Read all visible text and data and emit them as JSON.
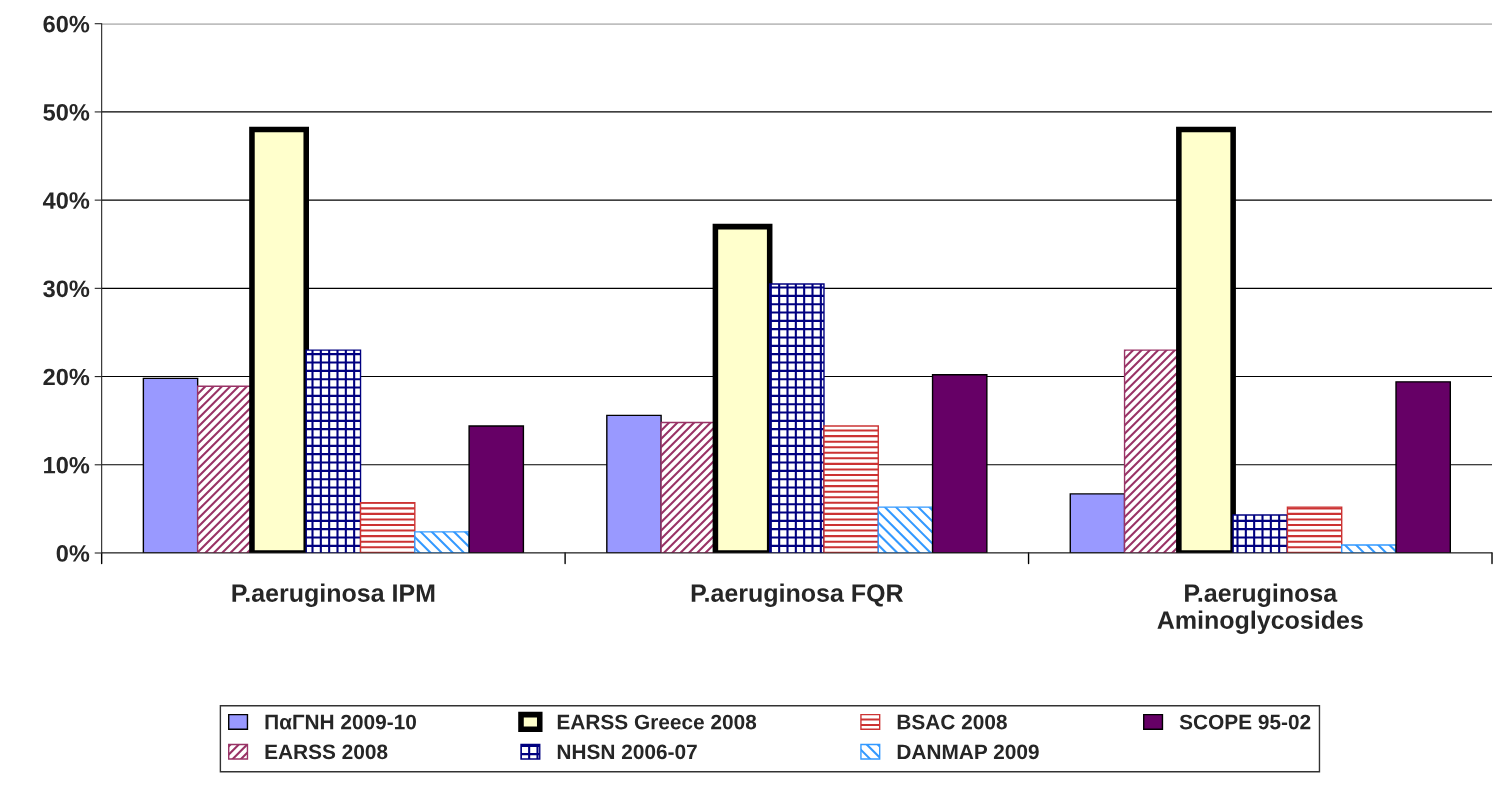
{
  "chart_data": {
    "type": "bar",
    "categories": [
      "P.aeruginosa IPM",
      "P.aeruginosa FQR",
      "P.aeruginosa Aminoglycosides"
    ],
    "series": [
      {
        "name": "ΠαΓΝΗ 2009-10",
        "color": "#9999ff",
        "values": [
          19.8,
          15.6,
          6.7
        ]
      },
      {
        "name": "EARSS 2008",
        "color": "#993366",
        "values": [
          18.9,
          14.8,
          23
        ]
      },
      {
        "name": "EARSS Greece 2008",
        "color": "#ffffcc",
        "values": [
          48,
          37,
          48
        ]
      },
      {
        "name": "NHSN 2006-07",
        "color": "#000080",
        "values": [
          23,
          30.5,
          4.3
        ]
      },
      {
        "name": "BSAC 2008",
        "color": "#cc3333",
        "values": [
          5.7,
          14.4,
          5.2
        ]
      },
      {
        "name": "DANMAP 2009",
        "color": "#3399ff",
        "values": [
          2.4,
          5.2,
          0.9
        ]
      },
      {
        "name": "SCOPE 95-02",
        "color": "#660066",
        "values": [
          14.4,
          20.2,
          19.4
        ]
      }
    ],
    "ylim": [
      0,
      60
    ],
    "yticks": [
      {
        "value": 0,
        "label": "0%"
      },
      {
        "value": 10,
        "label": "10%"
      },
      {
        "value": 20,
        "label": "20%"
      },
      {
        "value": 30,
        "label": "30%"
      },
      {
        "value": 40,
        "label": "40%"
      },
      {
        "value": 50,
        "label": "50%"
      },
      {
        "value": 60,
        "label": "60%"
      }
    ],
    "grid": "y",
    "legend": "bottom"
  }
}
